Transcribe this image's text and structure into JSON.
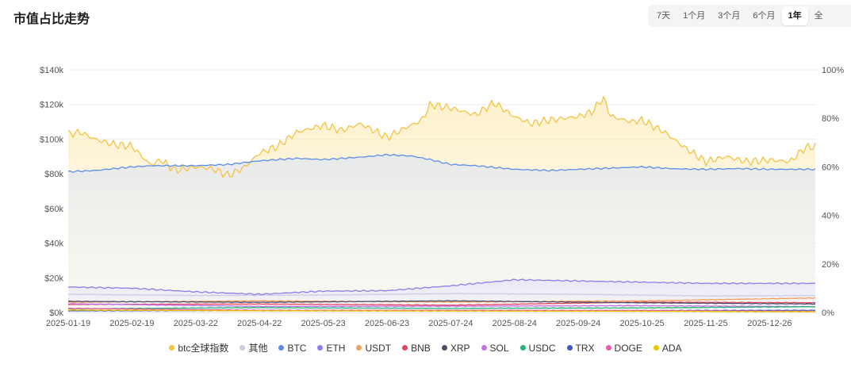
{
  "header": {
    "title": "市值占比走势"
  },
  "range_tabs": [
    {
      "label": "7天",
      "active": false
    },
    {
      "label": "1个月",
      "active": false
    },
    {
      "label": "3个月",
      "active": false
    },
    {
      "label": "6个月",
      "active": false
    },
    {
      "label": "1年",
      "active": true
    },
    {
      "label": "全",
      "active": false
    }
  ],
  "chart_data": {
    "type": "line",
    "title": "",
    "xlabel": "",
    "ylabel": "",
    "y_left": {
      "ticks": [
        "$0k",
        "$20k",
        "$40k",
        "$60k",
        "$80k",
        "$100k",
        "$120k",
        "$140k"
      ],
      "range": [
        0,
        140000
      ]
    },
    "y_right": {
      "ticks": [
        "0%",
        "20%",
        "40%",
        "60%",
        "80%",
        "100%"
      ],
      "range": [
        0,
        100
      ]
    },
    "x_range": [
      "2025-01-19",
      "2026-01-18"
    ],
    "x_ticks": [
      "2025-01-19",
      "2025-02-19",
      "2025-03-22",
      "2025-04-22",
      "2025-05-23",
      "2025-06-23",
      "2025-07-24",
      "2025-08-24",
      "2025-09-24",
      "2025-10-25",
      "2025-11-25",
      "2025-12-26"
    ],
    "grid": true,
    "legend_position": "bottom",
    "series": [
      {
        "name": "btc全球指数",
        "color": "#f5c242",
        "axis": "left",
        "area": true,
        "x": [
          "2025-01-19",
          "2025-01-25",
          "2025-02-01",
          "2025-02-10",
          "2025-02-19",
          "2025-02-28",
          "2025-03-05",
          "2025-03-12",
          "2025-03-22",
          "2025-03-30",
          "2025-04-07",
          "2025-04-15",
          "2025-04-22",
          "2025-05-01",
          "2025-05-10",
          "2025-05-20",
          "2025-05-23",
          "2025-06-01",
          "2025-06-10",
          "2025-06-23",
          "2025-07-01",
          "2025-07-10",
          "2025-07-14",
          "2025-07-24",
          "2025-08-05",
          "2025-08-14",
          "2025-08-24",
          "2025-09-01",
          "2025-09-10",
          "2025-09-24",
          "2025-10-01",
          "2025-10-06",
          "2025-10-10",
          "2025-10-20",
          "2025-10-25",
          "2025-11-05",
          "2025-11-15",
          "2025-11-25",
          "2025-12-05",
          "2025-12-15",
          "2025-12-26",
          "2026-01-05",
          "2026-01-12",
          "2026-01-18"
        ],
        "values": [
          103000,
          104000,
          100000,
          97000,
          96000,
          85000,
          88000,
          82000,
          84000,
          83000,
          79000,
          84000,
          92000,
          96000,
          104000,
          107000,
          108000,
          105000,
          109000,
          101000,
          106000,
          111000,
          120000,
          118000,
          114000,
          121000,
          113000,
          109000,
          111000,
          113000,
          116000,
          124000,
          113000,
          110000,
          111000,
          104000,
          95000,
          87000,
          90000,
          87000,
          88000,
          87000,
          95000,
          96000
        ]
      },
      {
        "name": "其他",
        "color": "#c9cde6",
        "axis": "right",
        "x": [
          "2025-01-19",
          "2025-03-22",
          "2025-05-23",
          "2025-07-24",
          "2025-09-24",
          "2025-11-25",
          "2026-01-18"
        ],
        "values": [
          7.5,
          7.0,
          7.2,
          7.8,
          7.5,
          6.8,
          7.0
        ]
      },
      {
        "name": "BTC",
        "color": "#5b8def",
        "axis": "right",
        "x": [
          "2025-01-19",
          "2025-02-01",
          "2025-02-19",
          "2025-03-01",
          "2025-03-22",
          "2025-04-07",
          "2025-04-22",
          "2025-05-10",
          "2025-05-23",
          "2025-06-10",
          "2025-06-23",
          "2025-07-05",
          "2025-07-14",
          "2025-07-24",
          "2025-08-05",
          "2025-08-24",
          "2025-09-10",
          "2025-09-24",
          "2025-10-10",
          "2025-10-25",
          "2025-11-10",
          "2025-11-25",
          "2025-12-10",
          "2025-12-26",
          "2026-01-18"
        ],
        "values": [
          58,
          58.5,
          60,
          60.5,
          60.5,
          61,
          62.5,
          63.5,
          63,
          64,
          65,
          64.5,
          63,
          61,
          60.5,
          59,
          58.5,
          59,
          59.5,
          60,
          59.2,
          59,
          59.3,
          59,
          59
        ]
      },
      {
        "name": "ETH",
        "color": "#8f7bf0",
        "axis": "right",
        "x": [
          "2025-01-19",
          "2025-02-19",
          "2025-03-22",
          "2025-04-22",
          "2025-05-23",
          "2025-06-23",
          "2025-07-24",
          "2025-08-24",
          "2025-09-24",
          "2025-10-25",
          "2025-11-25",
          "2025-12-26",
          "2026-01-18"
        ],
        "values": [
          10.5,
          10,
          8.5,
          7.5,
          8.8,
          9,
          11,
          13.5,
          13,
          12.5,
          12,
          12,
          12
        ]
      },
      {
        "name": "USDT",
        "color": "#f5a05a",
        "axis": "right",
        "x": [
          "2025-01-19",
          "2025-04-22",
          "2025-07-24",
          "2025-10-25",
          "2026-01-18"
        ],
        "values": [
          4.2,
          4.8,
          4.3,
          4.8,
          6
        ]
      },
      {
        "name": "BNB",
        "color": "#e8455b",
        "axis": "right",
        "x": [
          "2025-01-19",
          "2025-04-22",
          "2025-07-24",
          "2025-10-25",
          "2026-01-18"
        ],
        "values": [
          3.3,
          3.5,
          3.0,
          4.3,
          4.0
        ]
      },
      {
        "name": "XRP",
        "color": "#4a4e6d",
        "axis": "right",
        "x": [
          "2025-01-19",
          "2025-04-22",
          "2025-07-24",
          "2025-10-25",
          "2026-01-18"
        ],
        "values": [
          4.6,
          4.2,
          4.8,
          4.0,
          3.5
        ]
      },
      {
        "name": "SOL",
        "color": "#c46ee8",
        "axis": "right",
        "x": [
          "2025-01-19",
          "2025-04-22",
          "2025-07-24",
          "2025-10-25",
          "2026-01-18"
        ],
        "values": [
          3.6,
          2.5,
          2.6,
          2.8,
          2.4
        ]
      },
      {
        "name": "USDC",
        "color": "#23b57a",
        "axis": "right",
        "x": [
          "2025-01-19",
          "2025-04-22",
          "2025-07-24",
          "2025-10-25",
          "2026-01-18"
        ],
        "values": [
          1.5,
          2.0,
          1.7,
          1.9,
          2.4
        ]
      },
      {
        "name": "TRX",
        "color": "#3f57c2",
        "axis": "right",
        "x": [
          "2025-01-19",
          "2025-04-22",
          "2025-07-24",
          "2025-10-25",
          "2026-01-18"
        ],
        "values": [
          0.7,
          0.8,
          0.7,
          0.8,
          0.9
        ]
      },
      {
        "name": "DOGE",
        "color": "#ef5aa8",
        "axis": "right",
        "x": [
          "2025-01-19",
          "2025-04-22",
          "2025-07-24",
          "2025-10-25",
          "2026-01-18"
        ],
        "values": [
          1.7,
          0.9,
          0.9,
          0.8,
          0.5
        ]
      },
      {
        "name": "ADA",
        "color": "#e8c900",
        "axis": "right",
        "x": [
          "2025-01-19",
          "2025-04-22",
          "2025-07-24",
          "2025-10-25",
          "2026-01-18"
        ],
        "values": [
          1.0,
          0.7,
          0.6,
          0.5,
          0.3
        ]
      }
    ]
  }
}
